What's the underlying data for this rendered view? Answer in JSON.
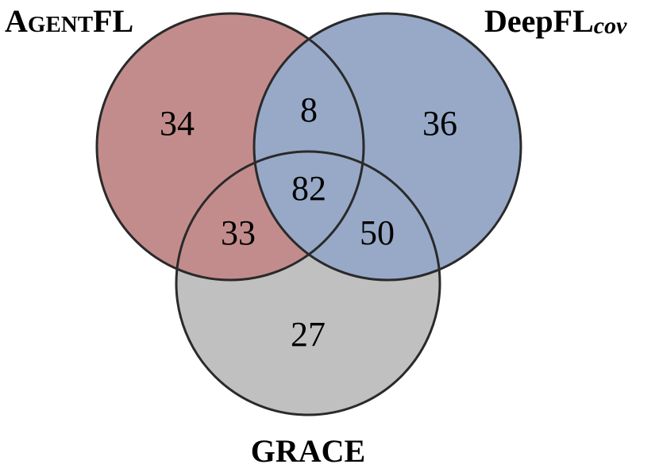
{
  "colors": {
    "set_a": "#c38c8c",
    "set_b": "#97a9c7",
    "set_c": "#c0c0c0",
    "a_and_b": "#97a9c7",
    "a_and_c": "#c38c8c",
    "b_and_c": "#97a9c7",
    "all_three": "#97a9c7",
    "outline": "#2a2a2a"
  },
  "sets": {
    "a": {
      "label_main": "A",
      "label_smallcaps": "GENT",
      "label_tail": "FL"
    },
    "b": {
      "label_main": "DeepFL",
      "label_sub": "cov"
    },
    "c": {
      "label_main": "GRACE"
    }
  },
  "regions": {
    "a_only": "34",
    "b_only": "36",
    "c_only": "27",
    "a_and_b_only": "8",
    "a_and_c_only": "33",
    "b_and_c_only": "50",
    "all_three": "82"
  }
}
